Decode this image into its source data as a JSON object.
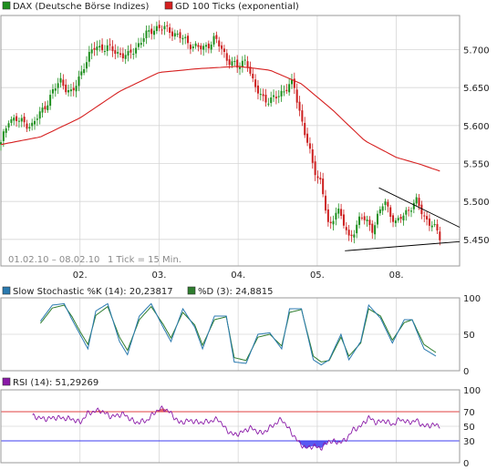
{
  "colors": {
    "grid": "#d6d6d6",
    "frame": "#9a9a9a",
    "candle_up": "#1e8f1e",
    "candle_down": "#cc1e1e",
    "ma": "#d62020",
    "trendline": "#000000",
    "stoch_k": "#2a7ab0",
    "stoch_d": "#2e7d2e",
    "rsi": "#8a1aa8",
    "rsi_overbought_fill": "#e05050",
    "rsi_oversold_fill": "#3c3cf0",
    "rsi_upper_line": "#e04040",
    "rsi_lower_line": "#3c3cf0"
  },
  "chart_data": [
    {
      "type": "candlestick",
      "legend": [
        {
          "label": "DAX (Deutsche Börse Indizes)",
          "color": "#1e8f1e",
          "icon": "green-square-icon"
        },
        {
          "label": "GD 100 Ticks (exponential)",
          "color": "#d62020",
          "icon": "red-square-icon"
        }
      ],
      "date_range_label": "01.02.10 – 08.02.10",
      "tick_info_label": "1 Tick = 15 Min.",
      "x_tick_labels": [
        "02.",
        "03.",
        "04.",
        "05.",
        "08."
      ],
      "x_range": [
        0,
        5.8
      ],
      "x_ticks": [
        1,
        2,
        3,
        4,
        5
      ],
      "y_ticks": [
        5450,
        5500,
        5550,
        5600,
        5650,
        5700
      ],
      "y_tick_labels": [
        "5.450",
        "5.500",
        "5.550",
        "5.600",
        "5.650",
        "5.700"
      ],
      "ylim": [
        5415,
        5745
      ],
      "price_anchors": [
        [
          0.0,
          5575
        ],
        [
          0.1,
          5610
        ],
        [
          0.25,
          5605
        ],
        [
          0.4,
          5600
        ],
        [
          0.55,
          5625
        ],
        [
          0.75,
          5660
        ],
        [
          0.9,
          5640
        ],
        [
          1.05,
          5680
        ],
        [
          1.2,
          5705
        ],
        [
          1.4,
          5700
        ],
        [
          1.6,
          5690
        ],
        [
          1.8,
          5715
        ],
        [
          1.95,
          5730
        ],
        [
          2.15,
          5725
        ],
        [
          2.35,
          5710
        ],
        [
          2.55,
          5700
        ],
        [
          2.7,
          5715
        ],
        [
          2.85,
          5690
        ],
        [
          3.0,
          5675
        ],
        [
          3.1,
          5690
        ],
        [
          3.2,
          5650
        ],
        [
          3.4,
          5630
        ],
        [
          3.55,
          5645
        ],
        [
          3.7,
          5655
        ],
        [
          3.82,
          5600
        ],
        [
          3.95,
          5545
        ],
        [
          4.05,
          5525
        ],
        [
          4.15,
          5460
        ],
        [
          4.25,
          5495
        ],
        [
          4.4,
          5450
        ],
        [
          4.55,
          5480
        ],
        [
          4.7,
          5465
        ],
        [
          4.85,
          5500
        ],
        [
          5.0,
          5470
        ],
        [
          5.15,
          5490
        ],
        [
          5.25,
          5500
        ],
        [
          5.35,
          5480
        ],
        [
          5.45,
          5470
        ],
        [
          5.55,
          5452
        ]
      ],
      "ma_anchors": [
        [
          0.0,
          5575
        ],
        [
          0.5,
          5585
        ],
        [
          1.0,
          5610
        ],
        [
          1.5,
          5645
        ],
        [
          2.0,
          5670
        ],
        [
          2.5,
          5675
        ],
        [
          3.0,
          5678
        ],
        [
          3.4,
          5673
        ],
        [
          3.8,
          5655
        ],
        [
          4.2,
          5620
        ],
        [
          4.6,
          5580
        ],
        [
          5.0,
          5558
        ],
        [
          5.3,
          5549
        ],
        [
          5.55,
          5540
        ]
      ],
      "trendlines": [
        {
          "from": [
            4.35,
            5435
          ],
          "to": [
            5.55,
            5445
          ]
        },
        {
          "from": [
            5.55,
            5445
          ],
          "to": [
            5.8,
            5447
          ]
        },
        {
          "from": [
            4.78,
            5518
          ],
          "to": [
            5.8,
            5466
          ]
        }
      ]
    },
    {
      "type": "line",
      "legend": [
        {
          "label": "Slow Stochastic %K (14): 20,23817",
          "color": "#2a7ab0",
          "icon": "teal-square-icon"
        },
        {
          "label": "%D (3): 24,8815",
          "color": "#2e7d2e",
          "icon": "olive-square-icon"
        }
      ],
      "y_ticks": [
        0,
        50,
        100
      ],
      "y_tick_labels": [
        "0",
        "50",
        "100"
      ],
      "ylim": [
        0,
        100
      ],
      "k_anchors": [
        [
          0.5,
          68
        ],
        [
          0.65,
          90
        ],
        [
          0.8,
          92
        ],
        [
          0.9,
          70
        ],
        [
          1.0,
          50
        ],
        [
          1.1,
          30
        ],
        [
          1.2,
          82
        ],
        [
          1.35,
          92
        ],
        [
          1.5,
          40
        ],
        [
          1.6,
          22
        ],
        [
          1.75,
          75
        ],
        [
          1.9,
          92
        ],
        [
          2.05,
          60
        ],
        [
          2.15,
          40
        ],
        [
          2.3,
          85
        ],
        [
          2.45,
          60
        ],
        [
          2.55,
          30
        ],
        [
          2.7,
          75
        ],
        [
          2.85,
          75
        ],
        [
          2.95,
          12
        ],
        [
          3.1,
          10
        ],
        [
          3.25,
          50
        ],
        [
          3.4,
          52
        ],
        [
          3.55,
          30
        ],
        [
          3.65,
          85
        ],
        [
          3.8,
          85
        ],
        [
          3.95,
          15
        ],
        [
          4.05,
          8
        ],
        [
          4.15,
          15
        ],
        [
          4.3,
          50
        ],
        [
          4.4,
          15
        ],
        [
          4.55,
          40
        ],
        [
          4.65,
          90
        ],
        [
          4.8,
          72
        ],
        [
          4.95,
          38
        ],
        [
          5.1,
          70
        ],
        [
          5.2,
          70
        ],
        [
          5.35,
          30
        ],
        [
          5.5,
          20
        ]
      ],
      "d_anchors": [
        [
          0.5,
          65
        ],
        [
          0.65,
          86
        ],
        [
          0.8,
          90
        ],
        [
          0.9,
          74
        ],
        [
          1.0,
          54
        ],
        [
          1.1,
          36
        ],
        [
          1.2,
          76
        ],
        [
          1.35,
          88
        ],
        [
          1.5,
          46
        ],
        [
          1.6,
          28
        ],
        [
          1.75,
          70
        ],
        [
          1.9,
          88
        ],
        [
          2.05,
          64
        ],
        [
          2.15,
          45
        ],
        [
          2.3,
          80
        ],
        [
          2.45,
          63
        ],
        [
          2.55,
          35
        ],
        [
          2.7,
          70
        ],
        [
          2.85,
          74
        ],
        [
          2.95,
          18
        ],
        [
          3.1,
          14
        ],
        [
          3.25,
          46
        ],
        [
          3.4,
          50
        ],
        [
          3.55,
          34
        ],
        [
          3.65,
          80
        ],
        [
          3.8,
          84
        ],
        [
          3.95,
          20
        ],
        [
          4.05,
          12
        ],
        [
          4.15,
          14
        ],
        [
          4.3,
          46
        ],
        [
          4.4,
          20
        ],
        [
          4.55,
          38
        ],
        [
          4.65,
          85
        ],
        [
          4.8,
          75
        ],
        [
          4.95,
          42
        ],
        [
          5.1,
          66
        ],
        [
          5.2,
          70
        ],
        [
          5.35,
          36
        ],
        [
          5.5,
          25
        ]
      ]
    },
    {
      "type": "line",
      "legend": [
        {
          "label": "RSI (14): 51,29269",
          "color": "#8a1aa8",
          "icon": "purple-square-icon"
        }
      ],
      "y_ticks": [
        0,
        30,
        50,
        70,
        100
      ],
      "y_tick_labels": [
        "0",
        "30",
        "50",
        "70",
        "100"
      ],
      "ylim": [
        0,
        100
      ],
      "upper_band": 70,
      "lower_band": 30,
      "anchors": [
        [
          0.4,
          64
        ],
        [
          0.55,
          60
        ],
        [
          0.7,
          62
        ],
        [
          0.9,
          60
        ],
        [
          1.0,
          55
        ],
        [
          1.1,
          68
        ],
        [
          1.25,
          72
        ],
        [
          1.4,
          63
        ],
        [
          1.55,
          67
        ],
        [
          1.7,
          55
        ],
        [
          1.85,
          58
        ],
        [
          1.95,
          70
        ],
        [
          2.05,
          75
        ],
        [
          2.15,
          68
        ],
        [
          2.25,
          55
        ],
        [
          2.4,
          58
        ],
        [
          2.5,
          55
        ],
        [
          2.65,
          57
        ],
        [
          2.75,
          60
        ],
        [
          2.85,
          45
        ],
        [
          2.95,
          38
        ],
        [
          3.05,
          42
        ],
        [
          3.15,
          48
        ],
        [
          3.3,
          40
        ],
        [
          3.45,
          52
        ],
        [
          3.55,
          60
        ],
        [
          3.65,
          45
        ],
        [
          3.75,
          30
        ],
        [
          3.85,
          20
        ],
        [
          3.95,
          23
        ],
        [
          4.05,
          20
        ],
        [
          4.15,
          30
        ],
        [
          4.25,
          28
        ],
        [
          4.35,
          30
        ],
        [
          4.45,
          45
        ],
        [
          4.55,
          50
        ],
        [
          4.65,
          62
        ],
        [
          4.75,
          55
        ],
        [
          4.85,
          58
        ],
        [
          4.95,
          52
        ],
        [
          5.05,
          60
        ],
        [
          5.15,
          55
        ],
        [
          5.25,
          58
        ],
        [
          5.35,
          50
        ],
        [
          5.45,
          52
        ],
        [
          5.55,
          51
        ]
      ]
    }
  ]
}
